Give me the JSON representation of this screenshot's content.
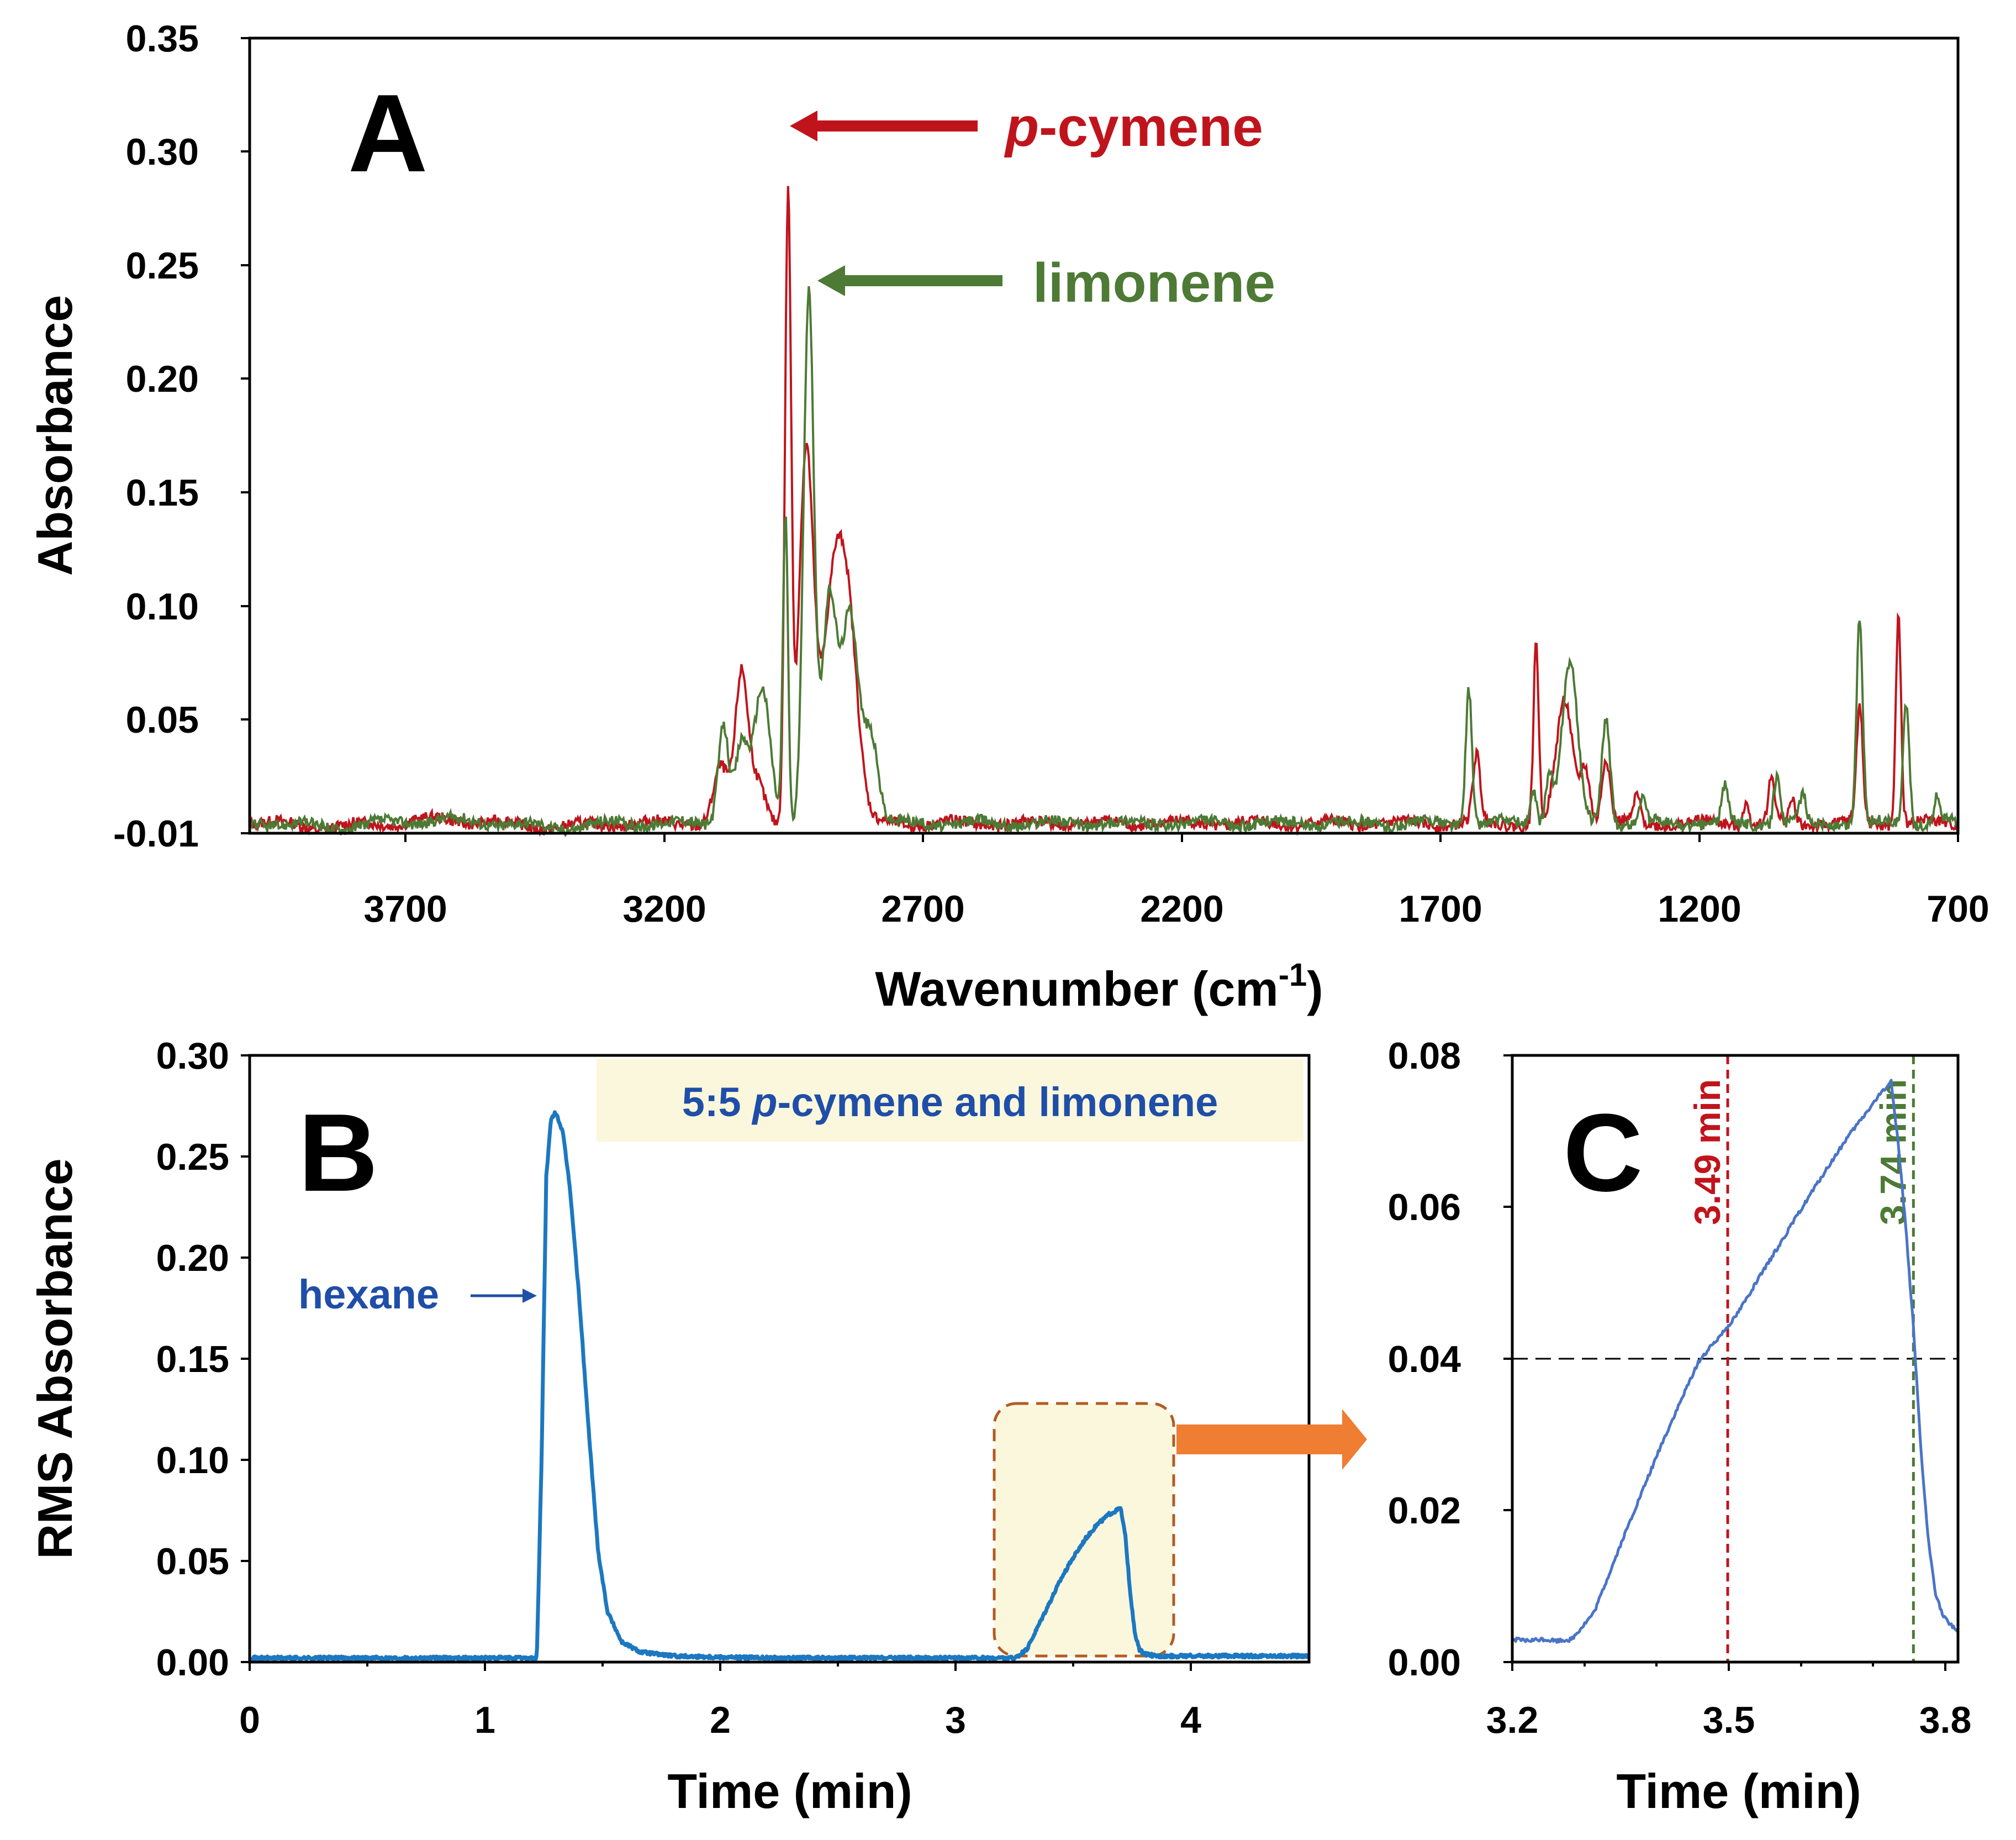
{
  "colors": {
    "pcymene": "#c0141c",
    "limonene": "#4d7a35",
    "rms": "#1c78c0",
    "zoom": "#4a74c6",
    "text_blue": "#1f4ea8",
    "highlight": "#fbf7dc",
    "zoom_box_border": "#b25c22",
    "zoom_arrow": "#ef7d32"
  },
  "chart_data": [
    {
      "panel": "A",
      "type": "line",
      "xlabel_main": "Wavenumber (cm",
      "xlabel_sup": "-1",
      "xlabel_close": ")",
      "ylabel": "Absorbance",
      "xlim": [
        4000,
        700
      ],
      "ylim": [
        -0.01,
        0.35
      ],
      "xticks": [
        "3700",
        "3200",
        "2700",
        "2200",
        "1700",
        "1200",
        "700"
      ],
      "yticks": [
        "-0.01",
        "0.05",
        "0.10",
        "0.15",
        "0.20",
        "0.25",
        "0.30",
        "0.35"
      ],
      "annotations": {
        "pcymene_italic": "p",
        "pcymene_rest": "-cymene",
        "limonene": "limonene"
      },
      "series": [
        {
          "name": "p-cymene",
          "color_key": "pcymene",
          "peaks": [
            [
              3090,
              0.025,
              14
            ],
            [
              3050,
              0.065,
              12
            ],
            [
              3020,
              0.02,
              16
            ],
            [
              2960,
              0.28,
              6
            ],
            [
              2925,
              0.165,
              14
            ],
            [
              2870,
              0.11,
              22
            ],
            [
              2840,
              0.06,
              18
            ],
            [
              1630,
              0.03,
              7
            ],
            [
              1515,
              0.082,
              5
            ],
            [
              1460,
              0.055,
              16
            ],
            [
              1420,
              0.025,
              9
            ],
            [
              1380,
              0.03,
              8
            ],
            [
              1320,
              0.012,
              6
            ],
            [
              1110,
              0.01,
              6
            ],
            [
              1060,
              0.02,
              6
            ],
            [
              1020,
              0.01,
              6
            ],
            [
              890,
              0.052,
              6
            ],
            [
              815,
              0.095,
              5
            ]
          ]
        },
        {
          "name": "limonene",
          "color_key": "limonene",
          "peaks": [
            [
              3085,
              0.045,
              10
            ],
            [
              3050,
              0.035,
              12
            ],
            [
              3010,
              0.06,
              16
            ],
            [
              2965,
              0.14,
              5
            ],
            [
              2920,
              0.24,
              10
            ],
            [
              2880,
              0.1,
              14
            ],
            [
              2840,
              0.095,
              16
            ],
            [
              2800,
              0.04,
              14
            ],
            [
              1645,
              0.062,
              6
            ],
            [
              1520,
              0.015,
              6
            ],
            [
              1490,
              0.022,
              7
            ],
            [
              1450,
              0.072,
              15
            ],
            [
              1380,
              0.048,
              8
            ],
            [
              1310,
              0.01,
              6
            ],
            [
              1150,
              0.016,
              6
            ],
            [
              1050,
              0.022,
              6
            ],
            [
              1000,
              0.012,
              6
            ],
            [
              890,
              0.093,
              6
            ],
            [
              800,
              0.055,
              6
            ],
            [
              740,
              0.012,
              6
            ]
          ]
        }
      ]
    },
    {
      "panel": "B",
      "type": "line",
      "xlabel": "Time (min)",
      "ylabel": "RMS Absorbance",
      "xlim": [
        0,
        4.5
      ],
      "ylim": [
        0,
        0.3
      ],
      "xticks": [
        "0",
        "1",
        "2",
        "3",
        "4"
      ],
      "yticks": [
        "0.00",
        "0.05",
        "0.10",
        "0.15",
        "0.20",
        "0.25",
        "0.30"
      ],
      "legend_label_pre": "5:5 ",
      "legend_label_italic": "p",
      "legend_label_post": "-cymene and limonene",
      "hexane_label": "hexane",
      "series": [
        {
          "name": "RMS absorbance",
          "color_key": "rms",
          "x": [
            0,
            1.2,
            1.22,
            1.24,
            1.26,
            1.28,
            1.3,
            1.33,
            1.36,
            1.4,
            1.44,
            1.48,
            1.52,
            1.58,
            1.66,
            1.8,
            2.2,
            3.25,
            3.3,
            3.35,
            3.4,
            3.45,
            3.5,
            3.55,
            3.6,
            3.65,
            3.7,
            3.72,
            3.74,
            3.76,
            3.78,
            3.8,
            3.85,
            4.5
          ],
          "y": [
            0.002,
            0.002,
            0.002,
            0.1,
            0.24,
            0.268,
            0.272,
            0.262,
            0.235,
            0.18,
            0.115,
            0.055,
            0.025,
            0.01,
            0.005,
            0.003,
            0.002,
            0.002,
            0.006,
            0.018,
            0.03,
            0.042,
            0.052,
            0.061,
            0.068,
            0.073,
            0.076,
            0.062,
            0.035,
            0.014,
            0.006,
            0.004,
            0.003,
            0.003
          ]
        }
      ]
    },
    {
      "panel": "C",
      "type": "line",
      "xlabel": "Time (min)",
      "xlim": [
        3.2,
        3.8
      ],
      "ylim": [
        0,
        0.08
      ],
      "xticks": [
        "3.2",
        "3.5",
        "3.8"
      ],
      "yticks": [
        "0.00",
        "0.02",
        "0.04",
        "0.06",
        "0.08"
      ],
      "threshold": 0.04,
      "vlines": [
        {
          "x": 3.49,
          "label": "3.49 min",
          "color_key": "pcymene"
        },
        {
          "x": 3.74,
          "label": "3.74 min",
          "color_key": "limonene"
        }
      ],
      "series": [
        {
          "name": "RMS absorbance (zoom)",
          "color_key": "zoom",
          "x": [
            3.2,
            3.22,
            3.24,
            3.26,
            3.28,
            3.31,
            3.35,
            3.4,
            3.45,
            3.5,
            3.55,
            3.6,
            3.65,
            3.7,
            3.71,
            3.72,
            3.73,
            3.74,
            3.75,
            3.76,
            3.77,
            3.78,
            3.8
          ],
          "y": [
            0.003,
            0.0028,
            0.003,
            0.0028,
            0.003,
            0.0065,
            0.0165,
            0.0285,
            0.0395,
            0.0455,
            0.0535,
            0.0615,
            0.069,
            0.0755,
            0.0765,
            0.068,
            0.057,
            0.044,
            0.028,
            0.016,
            0.009,
            0.006,
            0.004
          ]
        }
      ]
    }
  ]
}
